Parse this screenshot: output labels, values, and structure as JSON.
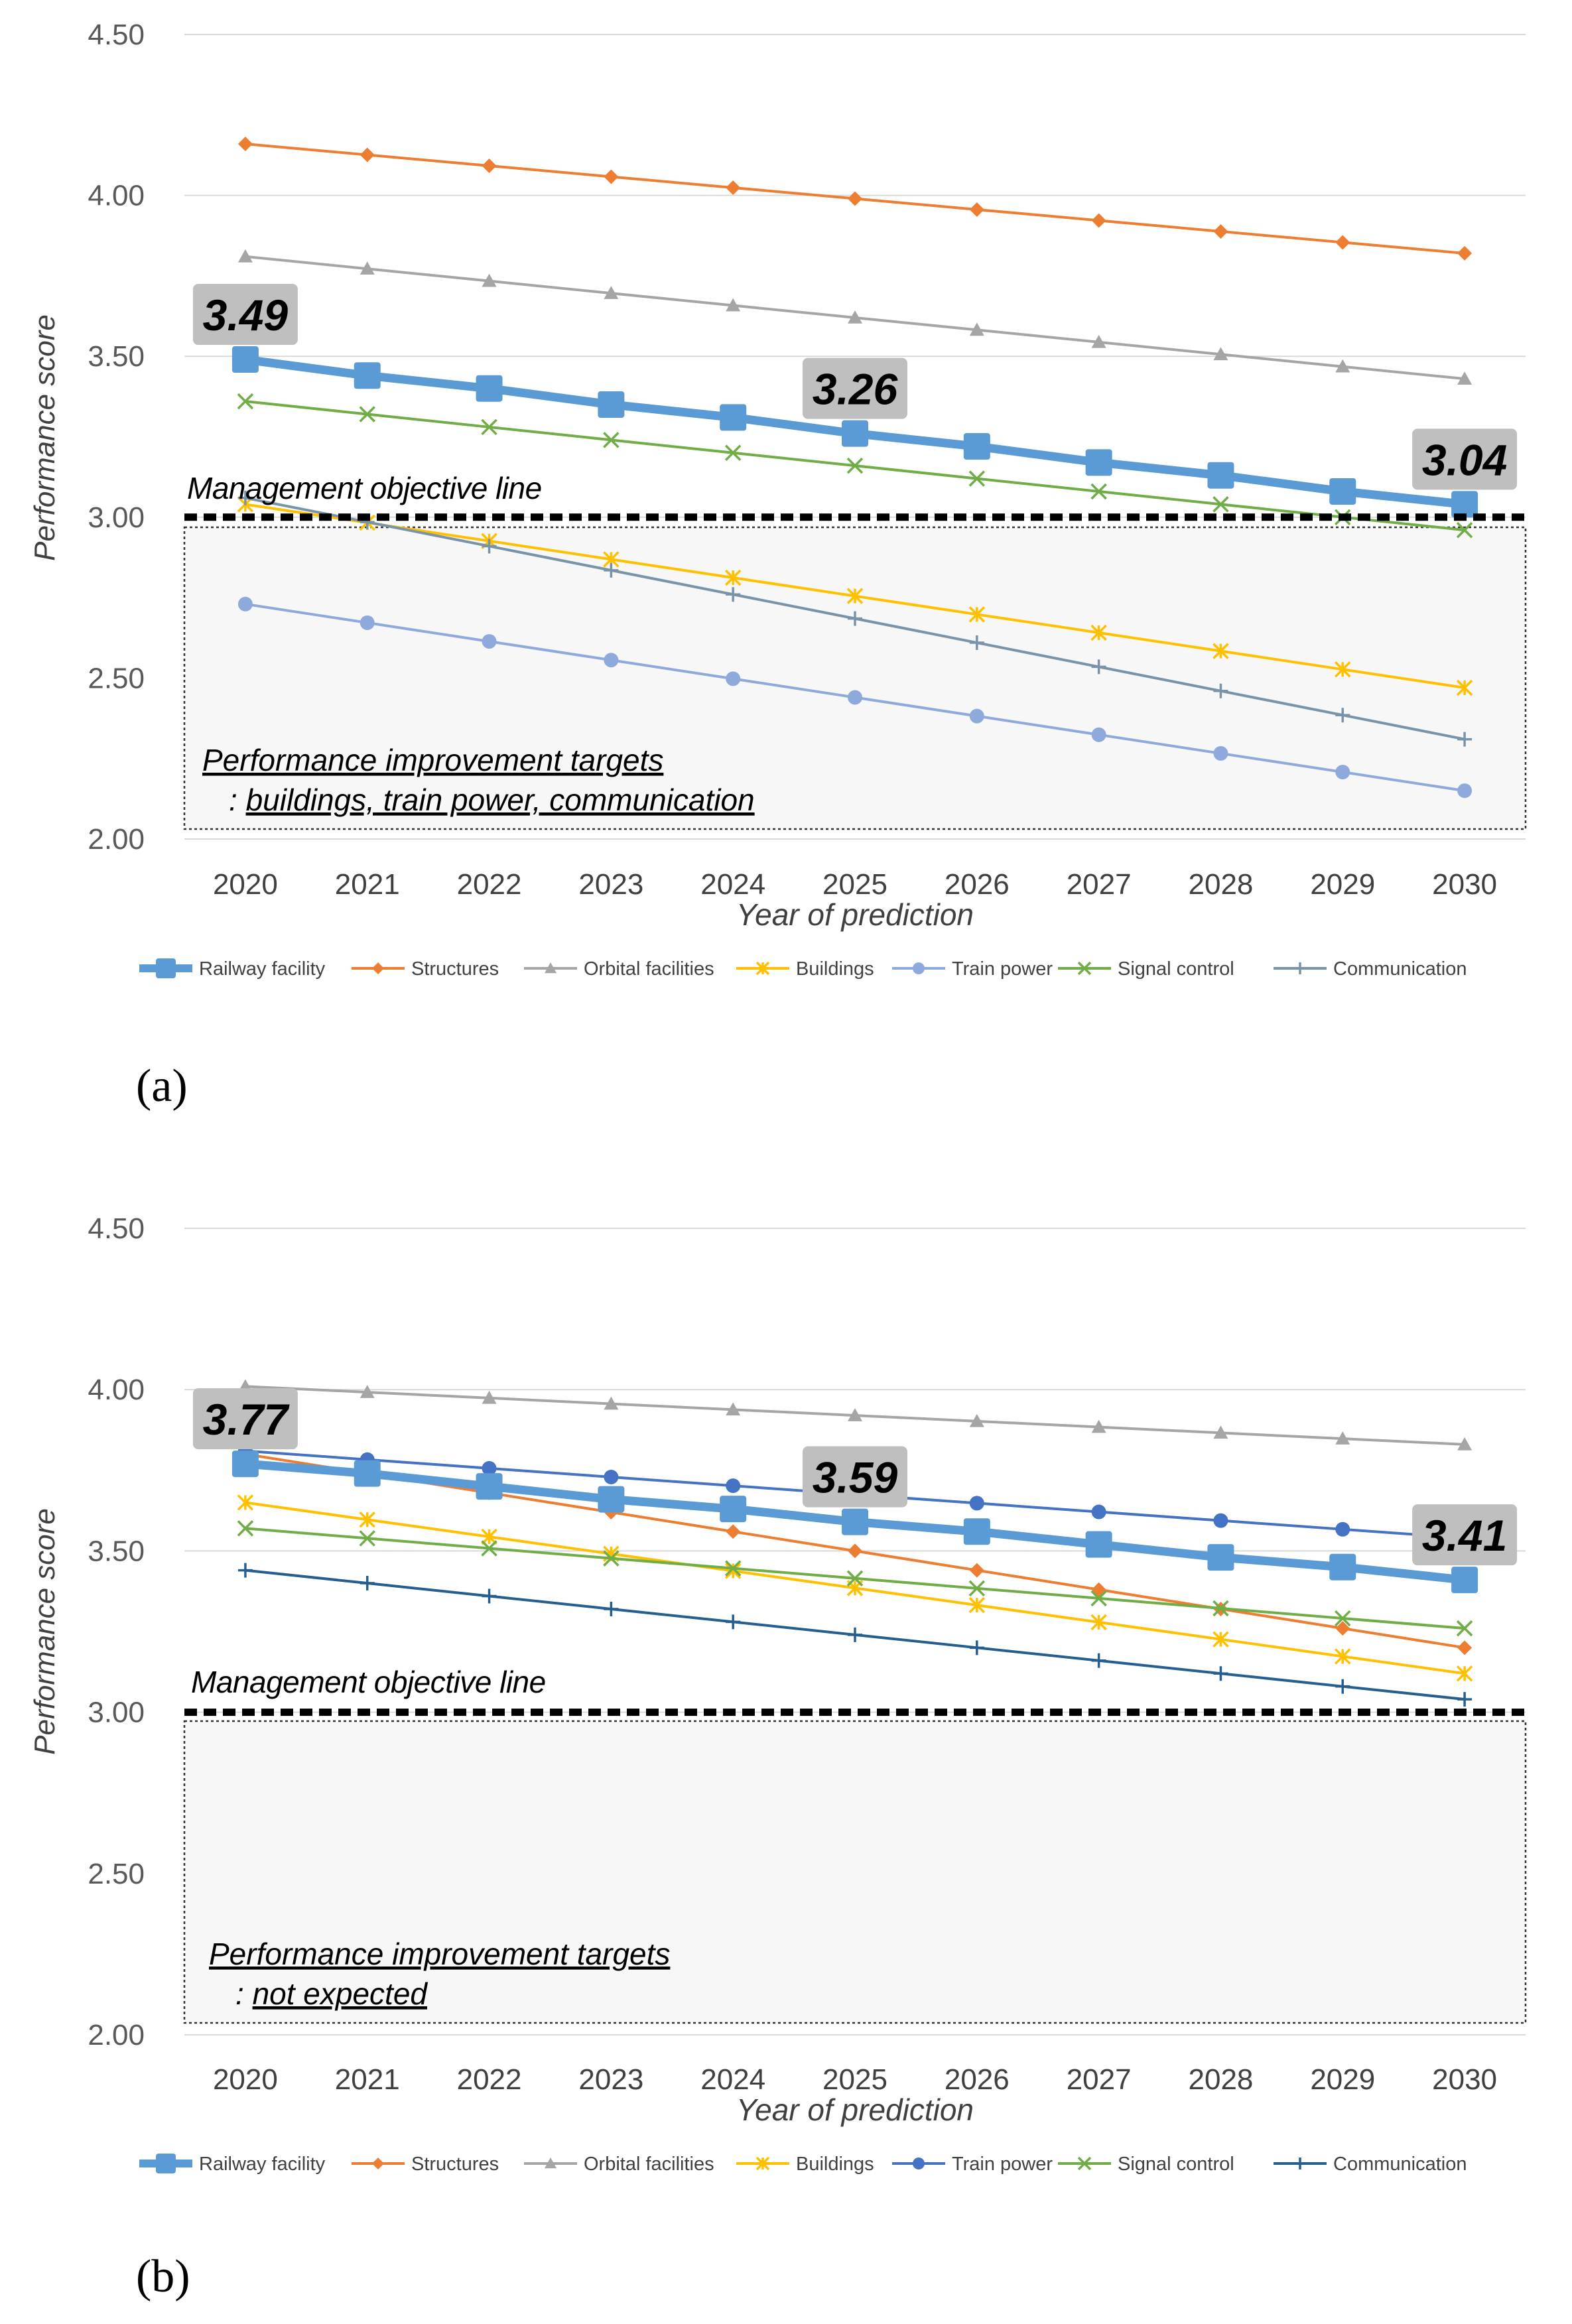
{
  "colors": {
    "railway": "#5B9BD5",
    "structures": "#ED7D31",
    "orbital": "#A5A5A5",
    "buildings": "#FFC000",
    "train_power": "#4472C4",
    "signal": "#70AD47",
    "communication": "#255E91",
    "grid": "#D9D9D9",
    "box_fill": "#F7F7F7",
    "callout": "#BFBFBF"
  },
  "chart_data": [
    {
      "type": "line",
      "panel_label": "(a)",
      "xlabel": "Year of prediction",
      "ylabel": "Performance score",
      "ylim": [
        2.0,
        4.5
      ],
      "yticks": [
        "2.00",
        "2.50",
        "3.00",
        "3.50",
        "4.00",
        "4.50"
      ],
      "categories": [
        "2020",
        "2021",
        "2022",
        "2023",
        "2024",
        "2025",
        "2026",
        "2027",
        "2028",
        "2029",
        "2030"
      ],
      "objective": {
        "value": 3.0,
        "label": "Management objective line"
      },
      "target_box": {
        "line1": "Performance improvement targets",
        "line2_prefix": ": ",
        "line2": "buildings, train power, communication"
      },
      "callouts": [
        {
          "text": "3.49",
          "index": 0
        },
        {
          "text": "3.26",
          "index": 5
        },
        {
          "text": "3.04",
          "index": 10
        }
      ],
      "legend": [
        "Railway facility",
        "Structures",
        "Orbital facilities",
        "Buildings",
        "Train power",
        "Signal control",
        "Communication"
      ],
      "series": [
        {
          "name": "Railway facility",
          "key": "railway",
          "marker": "square",
          "color": "#5B9BD5",
          "values": [
            3.49,
            3.44,
            3.4,
            3.35,
            3.31,
            3.26,
            3.22,
            3.17,
            3.13,
            3.08,
            3.04
          ]
        },
        {
          "name": "Structures",
          "key": "structures",
          "marker": "diamond",
          "color": "#ED7D31",
          "values": [
            4.16,
            4.126,
            4.092,
            4.058,
            4.024,
            3.99,
            3.956,
            3.922,
            3.888,
            3.854,
            3.82
          ]
        },
        {
          "name": "Orbital facilities",
          "key": "orbital",
          "marker": "triangle",
          "color": "#A5A5A5",
          "values": [
            3.81,
            3.772,
            3.734,
            3.696,
            3.658,
            3.62,
            3.582,
            3.544,
            3.506,
            3.468,
            3.43
          ]
        },
        {
          "name": "Buildings",
          "key": "buildings",
          "marker": "star",
          "color": "#FFC000",
          "values": [
            3.04,
            2.983,
            2.926,
            2.869,
            2.812,
            2.755,
            2.698,
            2.641,
            2.584,
            2.527,
            2.47
          ]
        },
        {
          "name": "Train power",
          "key": "train_power",
          "marker": "circle",
          "color": "#8EA9DB",
          "values": [
            2.73,
            2.672,
            2.614,
            2.556,
            2.498,
            2.44,
            2.382,
            2.324,
            2.266,
            2.208,
            2.15
          ]
        },
        {
          "name": "Signal control",
          "key": "signal",
          "marker": "x",
          "color": "#70AD47",
          "values": [
            3.36,
            3.32,
            3.28,
            3.24,
            3.2,
            3.16,
            3.12,
            3.08,
            3.04,
            3.0,
            2.96
          ]
        },
        {
          "name": "Communication",
          "key": "communication",
          "marker": "plus",
          "color": "#7993A9",
          "values": [
            3.06,
            2.985,
            2.91,
            2.835,
            2.76,
            2.685,
            2.61,
            2.535,
            2.46,
            2.385,
            2.31
          ]
        }
      ]
    },
    {
      "type": "line",
      "panel_label": "(b)",
      "xlabel": "Year of prediction",
      "ylabel": "Performance score",
      "ylim": [
        2.0,
        4.5
      ],
      "yticks": [
        "2.00",
        "2.50",
        "3.00",
        "3.50",
        "4.00",
        "4.50"
      ],
      "categories": [
        "2020",
        "2021",
        "2022",
        "2023",
        "2024",
        "2025",
        "2026",
        "2027",
        "2028",
        "2029",
        "2030"
      ],
      "objective": {
        "value": 3.0,
        "label": "Management objective line"
      },
      "target_box": {
        "line1": "Performance improvement targets",
        "line2_prefix": ": ",
        "line2": "not expected"
      },
      "callouts": [
        {
          "text": "3.77",
          "index": 0
        },
        {
          "text": "3.59",
          "index": 5
        },
        {
          "text": "3.41",
          "index": 10
        }
      ],
      "legend": [
        "Railway facility",
        "Structures",
        "Orbital facilities",
        "Buildings",
        "Train power",
        "Signal control",
        "Communication"
      ],
      "series": [
        {
          "name": "Railway facility",
          "key": "railway",
          "marker": "square",
          "color": "#5B9BD5",
          "values": [
            3.77,
            3.74,
            3.7,
            3.66,
            3.63,
            3.59,
            3.56,
            3.52,
            3.48,
            3.45,
            3.41
          ]
        },
        {
          "name": "Structures",
          "key": "structures",
          "marker": "diamond",
          "color": "#ED7D31",
          "values": [
            3.8,
            3.74,
            3.68,
            3.62,
            3.56,
            3.5,
            3.44,
            3.38,
            3.32,
            3.26,
            3.2
          ]
        },
        {
          "name": "Orbital facilities",
          "key": "orbital",
          "marker": "triangle",
          "color": "#A5A5A5",
          "values": [
            4.01,
            3.992,
            3.974,
            3.956,
            3.938,
            3.92,
            3.902,
            3.884,
            3.866,
            3.848,
            3.83
          ]
        },
        {
          "name": "Buildings",
          "key": "buildings",
          "marker": "star",
          "color": "#FFC000",
          "values": [
            3.65,
            3.597,
            3.544,
            3.491,
            3.438,
            3.385,
            3.332,
            3.279,
            3.226,
            3.173,
            3.12
          ]
        },
        {
          "name": "Train power",
          "key": "train_power",
          "marker": "circle",
          "color": "#4472C4",
          "values": [
            3.81,
            3.783,
            3.756,
            3.729,
            3.702,
            3.675,
            3.648,
            3.621,
            3.594,
            3.567,
            3.54
          ]
        },
        {
          "name": "Signal control",
          "key": "signal",
          "marker": "x",
          "color": "#70AD47",
          "values": [
            3.57,
            3.539,
            3.508,
            3.477,
            3.446,
            3.415,
            3.384,
            3.353,
            3.322,
            3.291,
            3.26
          ]
        },
        {
          "name": "Communication",
          "key": "communication",
          "marker": "plus",
          "color": "#255E91",
          "values": [
            3.44,
            3.4,
            3.36,
            3.32,
            3.28,
            3.24,
            3.2,
            3.16,
            3.12,
            3.08,
            3.04
          ]
        }
      ]
    }
  ]
}
